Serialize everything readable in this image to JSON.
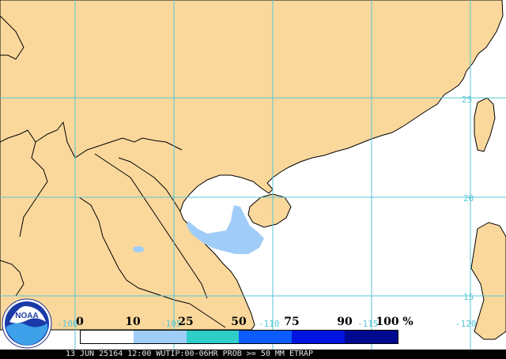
{
  "map": {
    "colors": {
      "ocean": "#ffffff",
      "land": "#fad89c",
      "border": "#000000",
      "grid": "#57c6d4",
      "prob_light": "#a0cdf8"
    },
    "lat_labels": [
      "25",
      "20",
      "15"
    ],
    "lon_labels": [
      "-100",
      "-105",
      "-110",
      "-115",
      "-120"
    ]
  },
  "legend": {
    "ticks": [
      "0",
      "10",
      "25",
      "50",
      "75",
      "90",
      "100"
    ],
    "unit": "%",
    "swatch_colors": [
      "#ffffff",
      "#a0cdf8",
      "#2fcdc8",
      "#0a5cff",
      "#0014e0",
      "#000a90"
    ]
  },
  "logo": {
    "text": "NOAA"
  },
  "status": {
    "text": "13 JUN 25164 12:00 WUTIP:00-06HR PROB >= 50 MM ETRAP"
  }
}
